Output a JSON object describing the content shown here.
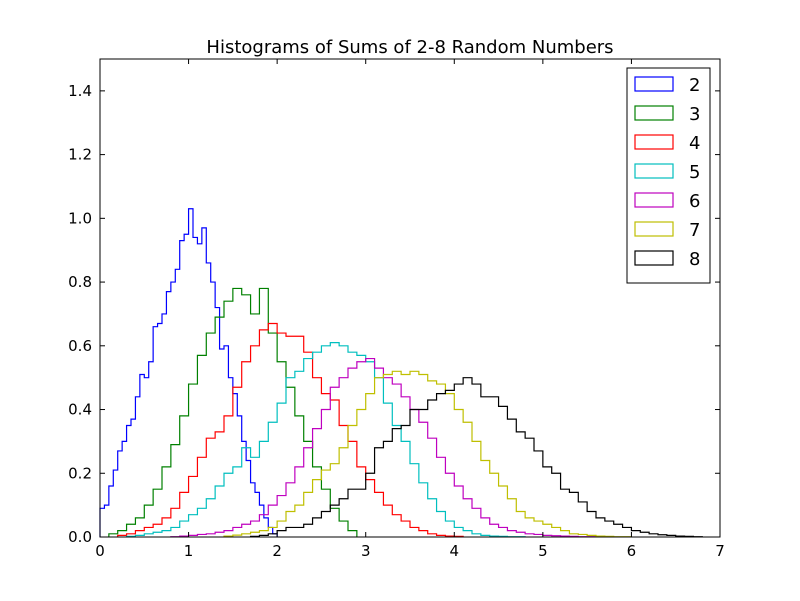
{
  "chart_data": {
    "type": "histogram",
    "title": "Histograms of Sums of 2-8 Random Numbers",
    "xlim": [
      0,
      7
    ],
    "ylim": [
      0,
      1.5
    ],
    "xticks": [
      0,
      1,
      2,
      3,
      4,
      5,
      6,
      7
    ],
    "xtick_labels": [
      "0",
      "1",
      "2",
      "3",
      "4",
      "5",
      "6",
      "7"
    ],
    "yticks": [
      0,
      0.2,
      0.4,
      0.6,
      0.8,
      1.0,
      1.2,
      1.4
    ],
    "ytick_labels": [
      "0.0",
      "0.2",
      "0.4",
      "0.6",
      "0.8",
      "1.0",
      "1.2",
      "1.4"
    ],
    "grid": false,
    "legend_position": "top-right",
    "histtype": "step",
    "series": [
      {
        "name": "2",
        "color": "#0000ff",
        "bin_edges": [
          0.0,
          0.05,
          0.1,
          0.15,
          0.2,
          0.25,
          0.3,
          0.35,
          0.4,
          0.45,
          0.5,
          0.55,
          0.6,
          0.65,
          0.7,
          0.75,
          0.8,
          0.85,
          0.9,
          0.95,
          1.0,
          1.05,
          1.1,
          1.15,
          1.2,
          1.25,
          1.3,
          1.35,
          1.4,
          1.45,
          1.5,
          1.55,
          1.6,
          1.65,
          1.7,
          1.75,
          1.8,
          1.85,
          1.9,
          1.95,
          2.0
        ],
        "values": [
          0.09,
          0.1,
          0.16,
          0.21,
          0.27,
          0.3,
          0.35,
          0.37,
          0.44,
          0.51,
          0.5,
          0.55,
          0.66,
          0.67,
          0.7,
          0.77,
          0.8,
          0.84,
          0.93,
          0.95,
          1.03,
          0.94,
          0.92,
          0.97,
          0.86,
          0.8,
          0.72,
          0.59,
          0.6,
          0.5,
          0.45,
          0.38,
          0.3,
          0.24,
          0.17,
          0.14,
          0.1,
          0.06,
          0.03,
          0.01
        ]
      },
      {
        "name": "3",
        "color": "#008000",
        "bin_edges": [
          0.1,
          0.2,
          0.3,
          0.4,
          0.5,
          0.6,
          0.7,
          0.8,
          0.9,
          1.0,
          1.1,
          1.2,
          1.3,
          1.4,
          1.5,
          1.6,
          1.7,
          1.8,
          1.9,
          2.0,
          2.1,
          2.2,
          2.3,
          2.4,
          2.5,
          2.6,
          2.7,
          2.8,
          2.9
        ],
        "values": [
          0.01,
          0.02,
          0.04,
          0.06,
          0.1,
          0.15,
          0.22,
          0.29,
          0.38,
          0.48,
          0.57,
          0.64,
          0.69,
          0.74,
          0.78,
          0.76,
          0.7,
          0.78,
          0.64,
          0.55,
          0.47,
          0.38,
          0.3,
          0.22,
          0.15,
          0.09,
          0.05,
          0.02
        ]
      },
      {
        "name": "4",
        "color": "#ff0000",
        "bin_edges": [
          0.2,
          0.3,
          0.4,
          0.5,
          0.6,
          0.7,
          0.8,
          0.9,
          1.0,
          1.1,
          1.2,
          1.3,
          1.4,
          1.5,
          1.6,
          1.7,
          1.8,
          1.9,
          2.0,
          2.1,
          2.2,
          2.3,
          2.4,
          2.5,
          2.6,
          2.7,
          2.8,
          2.9,
          3.0,
          3.1,
          3.2,
          3.3,
          3.4,
          3.5,
          3.6,
          3.7,
          3.8,
          3.9,
          4.0,
          4.1
        ],
        "values": [
          0.005,
          0.01,
          0.02,
          0.03,
          0.04,
          0.06,
          0.09,
          0.14,
          0.19,
          0.25,
          0.31,
          0.33,
          0.38,
          0.47,
          0.55,
          0.6,
          0.65,
          0.67,
          0.64,
          0.63,
          0.63,
          0.58,
          0.5,
          0.45,
          0.43,
          0.35,
          0.3,
          0.22,
          0.18,
          0.14,
          0.1,
          0.07,
          0.05,
          0.03,
          0.02,
          0.01,
          0.005,
          0.003,
          0.002
        ]
      },
      {
        "name": "5",
        "color": "#00bfbf",
        "bin_edges": [
          0.3,
          0.4,
          0.5,
          0.6,
          0.7,
          0.8,
          0.9,
          1.0,
          1.1,
          1.2,
          1.3,
          1.4,
          1.5,
          1.6,
          1.7,
          1.8,
          1.9,
          2.0,
          2.1,
          2.2,
          2.3,
          2.4,
          2.5,
          2.6,
          2.7,
          2.8,
          2.9,
          3.0,
          3.1,
          3.2,
          3.3,
          3.4,
          3.5,
          3.6,
          3.7,
          3.8,
          3.9,
          4.0,
          4.1,
          4.2,
          4.3,
          4.4,
          4.5,
          4.6,
          4.7,
          4.8
        ],
        "values": [
          0.002,
          0.005,
          0.01,
          0.015,
          0.02,
          0.03,
          0.05,
          0.07,
          0.09,
          0.12,
          0.16,
          0.2,
          0.22,
          0.28,
          0.25,
          0.3,
          0.36,
          0.42,
          0.5,
          0.52,
          0.56,
          0.58,
          0.6,
          0.61,
          0.6,
          0.58,
          0.57,
          0.55,
          0.5,
          0.42,
          0.35,
          0.3,
          0.23,
          0.17,
          0.12,
          0.08,
          0.05,
          0.03,
          0.02,
          0.01,
          0.005,
          0.003,
          0.002,
          0.001,
          0.001
        ]
      },
      {
        "name": "6",
        "color": "#bf00bf",
        "bin_edges": [
          0.8,
          0.9,
          1.0,
          1.1,
          1.2,
          1.3,
          1.4,
          1.5,
          1.6,
          1.7,
          1.8,
          1.9,
          2.0,
          2.1,
          2.2,
          2.3,
          2.4,
          2.5,
          2.6,
          2.7,
          2.8,
          2.9,
          3.0,
          3.1,
          3.2,
          3.3,
          3.4,
          3.5,
          3.6,
          3.7,
          3.8,
          3.9,
          4.0,
          4.1,
          4.2,
          4.3,
          4.4,
          4.5,
          4.6,
          4.7,
          4.8,
          4.9,
          5.0,
          5.1,
          5.2,
          5.3,
          5.4,
          5.5,
          5.6
        ],
        "values": [
          0.001,
          0.003,
          0.005,
          0.008,
          0.01,
          0.015,
          0.02,
          0.03,
          0.04,
          0.05,
          0.07,
          0.1,
          0.13,
          0.17,
          0.22,
          0.28,
          0.34,
          0.4,
          0.47,
          0.5,
          0.53,
          0.55,
          0.56,
          0.53,
          0.5,
          0.48,
          0.44,
          0.4,
          0.36,
          0.31,
          0.25,
          0.2,
          0.16,
          0.12,
          0.09,
          0.06,
          0.04,
          0.03,
          0.02,
          0.015,
          0.01,
          0.008,
          0.005,
          0.004,
          0.003,
          0.002,
          0.001,
          0.001
        ]
      },
      {
        "name": "7",
        "color": "#bfbf00",
        "bin_edges": [
          1.4,
          1.5,
          1.6,
          1.7,
          1.8,
          1.9,
          2.0,
          2.1,
          2.2,
          2.3,
          2.4,
          2.5,
          2.6,
          2.7,
          2.8,
          2.9,
          3.0,
          3.1,
          3.2,
          3.3,
          3.4,
          3.5,
          3.6,
          3.7,
          3.8,
          3.9,
          4.0,
          4.1,
          4.2,
          4.3,
          4.4,
          4.5,
          4.6,
          4.7,
          4.8,
          4.9,
          5.0,
          5.1,
          5.2,
          5.3,
          5.4,
          5.5,
          5.6,
          5.7,
          5.8,
          5.9,
          6.0
        ],
        "values": [
          0.003,
          0.006,
          0.01,
          0.015,
          0.02,
          0.03,
          0.05,
          0.08,
          0.1,
          0.14,
          0.18,
          0.21,
          0.23,
          0.28,
          0.35,
          0.4,
          0.45,
          0.5,
          0.51,
          0.52,
          0.51,
          0.52,
          0.51,
          0.49,
          0.48,
          0.45,
          0.4,
          0.36,
          0.3,
          0.24,
          0.2,
          0.16,
          0.12,
          0.08,
          0.06,
          0.05,
          0.04,
          0.03,
          0.02,
          0.01,
          0.008,
          0.005,
          0.003,
          0.002,
          0.001,
          0.001
        ]
      },
      {
        "name": "8",
        "color": "#000000",
        "bin_edges": [
          1.7,
          1.8,
          1.9,
          2.0,
          2.1,
          2.2,
          2.3,
          2.4,
          2.5,
          2.6,
          2.7,
          2.8,
          2.9,
          3.0,
          3.1,
          3.2,
          3.3,
          3.4,
          3.5,
          3.6,
          3.7,
          3.8,
          3.9,
          4.0,
          4.1,
          4.2,
          4.3,
          4.4,
          4.5,
          4.6,
          4.7,
          4.8,
          4.9,
          5.0,
          5.1,
          5.2,
          5.3,
          5.4,
          5.5,
          5.6,
          5.7,
          5.8,
          5.9,
          6.0,
          6.1,
          6.2,
          6.3,
          6.4,
          6.5,
          6.6,
          6.7,
          6.8
        ],
        "values": [
          0.002,
          0.005,
          0.01,
          0.02,
          0.03,
          0.03,
          0.04,
          0.06,
          0.08,
          0.1,
          0.12,
          0.15,
          0.15,
          0.2,
          0.28,
          0.3,
          0.34,
          0.35,
          0.4,
          0.4,
          0.43,
          0.45,
          0.46,
          0.48,
          0.5,
          0.48,
          0.44,
          0.44,
          0.41,
          0.37,
          0.33,
          0.31,
          0.27,
          0.22,
          0.2,
          0.15,
          0.14,
          0.11,
          0.08,
          0.06,
          0.05,
          0.04,
          0.03,
          0.02,
          0.015,
          0.01,
          0.007,
          0.005,
          0.003,
          0.002,
          0.001
        ]
      }
    ]
  }
}
